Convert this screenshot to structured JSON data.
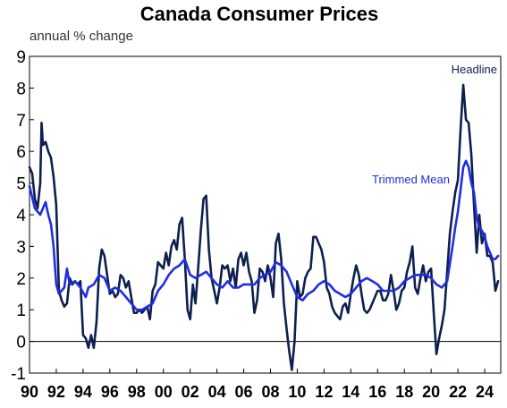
{
  "chart_data": {
    "type": "line",
    "title": "Canada Consumer Prices",
    "subtitle": "annual % change",
    "xlabel": "",
    "ylabel": "",
    "xlim": [
      1990,
      2025.2
    ],
    "ylim": [
      -1,
      9
    ],
    "y_ticks": [
      "-1",
      "0",
      "1",
      "2",
      "3",
      "4",
      "5",
      "6",
      "7",
      "8",
      "9"
    ],
    "x_ticks": [
      {
        "year": 1990,
        "label": "90"
      },
      {
        "year": 1992,
        "label": "92"
      },
      {
        "year": 1994,
        "label": "94"
      },
      {
        "year": 1996,
        "label": "96"
      },
      {
        "year": 1998,
        "label": "98"
      },
      {
        "year": 2000,
        "label": "00"
      },
      {
        "year": 2002,
        "label": "02"
      },
      {
        "year": 2004,
        "label": "04"
      },
      {
        "year": 2006,
        "label": "06"
      },
      {
        "year": 2008,
        "label": "08"
      },
      {
        "year": 2010,
        "label": "10"
      },
      {
        "year": 2012,
        "label": "12"
      },
      {
        "year": 2014,
        "label": "14"
      },
      {
        "year": 2016,
        "label": "16"
      },
      {
        "year": 2018,
        "label": "18"
      },
      {
        "year": 2020,
        "label": "20"
      },
      {
        "year": 2022,
        "label": "22"
      },
      {
        "year": 2024,
        "label": "24"
      }
    ],
    "grid": false,
    "legend": "inline labels near series",
    "series": [
      {
        "name": "Headline",
        "color": "#0d1f4e",
        "points": [
          [
            1990.0,
            5.5
          ],
          [
            1990.2,
            5.3
          ],
          [
            1990.4,
            4.5
          ],
          [
            1990.6,
            4.2
          ],
          [
            1990.8,
            5.0
          ],
          [
            1990.9,
            6.9
          ],
          [
            1991.0,
            6.2
          ],
          [
            1991.2,
            6.3
          ],
          [
            1991.4,
            6.0
          ],
          [
            1991.6,
            5.8
          ],
          [
            1991.8,
            5.2
          ],
          [
            1992.0,
            4.3
          ],
          [
            1992.2,
            1.6
          ],
          [
            1992.4,
            1.3
          ],
          [
            1992.6,
            1.1
          ],
          [
            1992.8,
            1.2
          ],
          [
            1993.0,
            2.0
          ],
          [
            1993.2,
            1.8
          ],
          [
            1993.4,
            1.9
          ],
          [
            1993.6,
            1.8
          ],
          [
            1993.8,
            1.9
          ],
          [
            1994.0,
            0.2
          ],
          [
            1994.2,
            0.1
          ],
          [
            1994.4,
            -0.2
          ],
          [
            1994.6,
            0.2
          ],
          [
            1994.8,
            -0.2
          ],
          [
            1995.0,
            0.6
          ],
          [
            1995.2,
            2.3
          ],
          [
            1995.4,
            2.9
          ],
          [
            1995.6,
            2.7
          ],
          [
            1995.8,
            2.1
          ],
          [
            1996.0,
            1.5
          ],
          [
            1996.2,
            1.6
          ],
          [
            1996.4,
            1.4
          ],
          [
            1996.6,
            1.5
          ],
          [
            1996.8,
            2.1
          ],
          [
            1997.0,
            2.0
          ],
          [
            1997.2,
            1.7
          ],
          [
            1997.4,
            1.9
          ],
          [
            1997.6,
            1.4
          ],
          [
            1997.8,
            0.9
          ],
          [
            1998.0,
            0.9
          ],
          [
            1998.2,
            1.0
          ],
          [
            1998.4,
            0.9
          ],
          [
            1998.6,
            1.0
          ],
          [
            1998.8,
            1.1
          ],
          [
            1999.0,
            0.7
          ],
          [
            1999.2,
            1.6
          ],
          [
            1999.4,
            1.8
          ],
          [
            1999.6,
            2.5
          ],
          [
            1999.8,
            2.4
          ],
          [
            2000.0,
            2.3
          ],
          [
            2000.2,
            2.8
          ],
          [
            2000.4,
            2.4
          ],
          [
            2000.6,
            3.0
          ],
          [
            2000.8,
            3.2
          ],
          [
            2001.0,
            2.9
          ],
          [
            2001.2,
            3.7
          ],
          [
            2001.4,
            3.9
          ],
          [
            2001.6,
            2.6
          ],
          [
            2001.8,
            1.0
          ],
          [
            2002.0,
            0.7
          ],
          [
            2002.2,
            1.8
          ],
          [
            2002.4,
            1.2
          ],
          [
            2002.6,
            2.3
          ],
          [
            2002.8,
            3.5
          ],
          [
            2003.0,
            4.5
          ],
          [
            2003.2,
            4.6
          ],
          [
            2003.4,
            2.9
          ],
          [
            2003.6,
            2.0
          ],
          [
            2003.8,
            1.6
          ],
          [
            2004.0,
            1.2
          ],
          [
            2004.2,
            1.7
          ],
          [
            2004.4,
            2.4
          ],
          [
            2004.6,
            2.3
          ],
          [
            2004.8,
            2.4
          ],
          [
            2005.0,
            1.9
          ],
          [
            2005.2,
            2.3
          ],
          [
            2005.4,
            1.7
          ],
          [
            2005.6,
            2.6
          ],
          [
            2005.8,
            2.8
          ],
          [
            2006.0,
            2.4
          ],
          [
            2006.2,
            2.8
          ],
          [
            2006.4,
            2.2
          ],
          [
            2006.6,
            1.9
          ],
          [
            2006.8,
            0.9
          ],
          [
            2007.0,
            1.3
          ],
          [
            2007.2,
            2.3
          ],
          [
            2007.4,
            2.2
          ],
          [
            2007.6,
            1.9
          ],
          [
            2007.8,
            2.4
          ],
          [
            2008.0,
            2.0
          ],
          [
            2008.2,
            1.4
          ],
          [
            2008.4,
            3.1
          ],
          [
            2008.6,
            3.4
          ],
          [
            2008.8,
            2.6
          ],
          [
            2009.0,
            1.2
          ],
          [
            2009.2,
            0.4
          ],
          [
            2009.4,
            -0.3
          ],
          [
            2009.6,
            -0.9
          ],
          [
            2009.8,
            0.0
          ],
          [
            2010.0,
            1.9
          ],
          [
            2010.2,
            1.4
          ],
          [
            2010.4,
            1.5
          ],
          [
            2010.6,
            2.0
          ],
          [
            2010.8,
            2.2
          ],
          [
            2011.0,
            2.3
          ],
          [
            2011.2,
            3.3
          ],
          [
            2011.4,
            3.3
          ],
          [
            2011.6,
            3.1
          ],
          [
            2011.8,
            2.9
          ],
          [
            2012.0,
            2.5
          ],
          [
            2012.2,
            1.7
          ],
          [
            2012.4,
            1.5
          ],
          [
            2012.6,
            1.1
          ],
          [
            2012.8,
            0.9
          ],
          [
            2013.0,
            0.8
          ],
          [
            2013.2,
            0.7
          ],
          [
            2013.4,
            1.1
          ],
          [
            2013.6,
            1.2
          ],
          [
            2013.8,
            0.9
          ],
          [
            2014.0,
            1.5
          ],
          [
            2014.2,
            2.0
          ],
          [
            2014.4,
            2.4
          ],
          [
            2014.6,
            2.1
          ],
          [
            2014.8,
            1.5
          ],
          [
            2015.0,
            1.0
          ],
          [
            2015.2,
            0.9
          ],
          [
            2015.4,
            1.0
          ],
          [
            2015.6,
            1.2
          ],
          [
            2015.8,
            1.4
          ],
          [
            2016.0,
            1.6
          ],
          [
            2016.2,
            1.6
          ],
          [
            2016.4,
            1.3
          ],
          [
            2016.6,
            1.3
          ],
          [
            2016.8,
            1.5
          ],
          [
            2017.0,
            2.1
          ],
          [
            2017.2,
            1.6
          ],
          [
            2017.4,
            1.0
          ],
          [
            2017.6,
            1.2
          ],
          [
            2017.8,
            1.6
          ],
          [
            2018.0,
            1.7
          ],
          [
            2018.2,
            2.2
          ],
          [
            2018.4,
            2.5
          ],
          [
            2018.6,
            3.0
          ],
          [
            2018.8,
            1.7
          ],
          [
            2019.0,
            1.5
          ],
          [
            2019.2,
            2.0
          ],
          [
            2019.4,
            2.4
          ],
          [
            2019.6,
            1.9
          ],
          [
            2019.8,
            2.2
          ],
          [
            2020.0,
            2.3
          ],
          [
            2020.2,
            0.9
          ],
          [
            2020.4,
            -0.4
          ],
          [
            2020.6,
            0.1
          ],
          [
            2020.8,
            0.5
          ],
          [
            2021.0,
            1.0
          ],
          [
            2021.2,
            2.2
          ],
          [
            2021.4,
            3.4
          ],
          [
            2021.6,
            4.1
          ],
          [
            2021.8,
            4.7
          ],
          [
            2022.0,
            5.1
          ],
          [
            2022.2,
            6.7
          ],
          [
            2022.4,
            8.1
          ],
          [
            2022.6,
            7.0
          ],
          [
            2022.8,
            6.9
          ],
          [
            2023.0,
            5.9
          ],
          [
            2023.2,
            4.3
          ],
          [
            2023.4,
            2.8
          ],
          [
            2023.6,
            4.0
          ],
          [
            2023.8,
            3.1
          ],
          [
            2024.0,
            3.4
          ],
          [
            2024.2,
            2.7
          ],
          [
            2024.4,
            2.7
          ],
          [
            2024.6,
            2.5
          ],
          [
            2024.8,
            1.6
          ],
          [
            2025.0,
            1.9
          ]
        ]
      },
      {
        "name": "Trimmed Mean",
        "color": "#1f2ee0",
        "points": [
          [
            1990.0,
            4.9
          ],
          [
            1990.4,
            4.2
          ],
          [
            1990.8,
            4.0
          ],
          [
            1991.2,
            4.4
          ],
          [
            1991.4,
            4.0
          ],
          [
            1991.6,
            3.7
          ],
          [
            1991.8,
            3.0
          ],
          [
            1992.0,
            1.8
          ],
          [
            1992.2,
            1.5
          ],
          [
            1992.6,
            1.7
          ],
          [
            1992.8,
            2.3
          ],
          [
            1993.0,
            1.8
          ],
          [
            1993.4,
            1.9
          ],
          [
            1993.8,
            1.7
          ],
          [
            1994.2,
            1.4
          ],
          [
            1994.4,
            1.7
          ],
          [
            1994.8,
            1.8
          ],
          [
            1995.2,
            2.1
          ],
          [
            1995.6,
            2.0
          ],
          [
            1996.0,
            1.6
          ],
          [
            1996.4,
            1.7
          ],
          [
            1996.8,
            1.6
          ],
          [
            1997.2,
            1.4
          ],
          [
            1997.6,
            1.2
          ],
          [
            1998.0,
            1.0
          ],
          [
            1998.4,
            1.0
          ],
          [
            1998.8,
            1.1
          ],
          [
            1999.2,
            1.2
          ],
          [
            1999.6,
            1.6
          ],
          [
            2000.0,
            1.8
          ],
          [
            2000.4,
            2.1
          ],
          [
            2000.8,
            2.3
          ],
          [
            2001.2,
            2.4
          ],
          [
            2001.6,
            2.6
          ],
          [
            2002.0,
            2.1
          ],
          [
            2002.4,
            2.0
          ],
          [
            2002.8,
            2.1
          ],
          [
            2003.2,
            2.2
          ],
          [
            2003.6,
            2.0
          ],
          [
            2004.0,
            1.8
          ],
          [
            2004.4,
            1.7
          ],
          [
            2004.8,
            1.9
          ],
          [
            2005.2,
            1.7
          ],
          [
            2005.6,
            1.7
          ],
          [
            2006.0,
            1.8
          ],
          [
            2006.4,
            1.8
          ],
          [
            2006.8,
            1.8
          ],
          [
            2007.2,
            2.0
          ],
          [
            2007.6,
            2.1
          ],
          [
            2008.0,
            2.2
          ],
          [
            2008.4,
            2.5
          ],
          [
            2008.8,
            2.4
          ],
          [
            2009.2,
            2.2
          ],
          [
            2009.6,
            1.8
          ],
          [
            2010.0,
            1.4
          ],
          [
            2010.4,
            1.3
          ],
          [
            2010.8,
            1.5
          ],
          [
            2011.2,
            1.6
          ],
          [
            2011.6,
            1.8
          ],
          [
            2012.0,
            1.9
          ],
          [
            2012.4,
            1.8
          ],
          [
            2012.8,
            1.6
          ],
          [
            2013.2,
            1.5
          ],
          [
            2013.6,
            1.4
          ],
          [
            2014.0,
            1.5
          ],
          [
            2014.4,
            1.7
          ],
          [
            2014.8,
            1.9
          ],
          [
            2015.2,
            2.0
          ],
          [
            2015.6,
            1.9
          ],
          [
            2016.0,
            1.8
          ],
          [
            2016.4,
            1.6
          ],
          [
            2016.8,
            1.6
          ],
          [
            2017.2,
            1.6
          ],
          [
            2017.6,
            1.7
          ],
          [
            2018.0,
            1.9
          ],
          [
            2018.4,
            2.0
          ],
          [
            2018.8,
            2.1
          ],
          [
            2019.2,
            2.1
          ],
          [
            2019.6,
            2.1
          ],
          [
            2020.0,
            2.0
          ],
          [
            2020.4,
            1.8
          ],
          [
            2020.8,
            1.7
          ],
          [
            2021.2,
            1.9
          ],
          [
            2021.6,
            3.0
          ],
          [
            2021.8,
            3.6
          ],
          [
            2022.0,
            4.1
          ],
          [
            2022.2,
            4.8
          ],
          [
            2022.4,
            5.5
          ],
          [
            2022.6,
            5.7
          ],
          [
            2022.8,
            5.5
          ],
          [
            2023.0,
            5.0
          ],
          [
            2023.2,
            4.7
          ],
          [
            2023.4,
            3.9
          ],
          [
            2023.6,
            3.6
          ],
          [
            2023.8,
            3.5
          ],
          [
            2024.0,
            3.3
          ],
          [
            2024.2,
            3.0
          ],
          [
            2024.4,
            2.8
          ],
          [
            2024.6,
            2.6
          ],
          [
            2024.8,
            2.6
          ],
          [
            2025.0,
            2.7
          ]
        ]
      }
    ]
  }
}
